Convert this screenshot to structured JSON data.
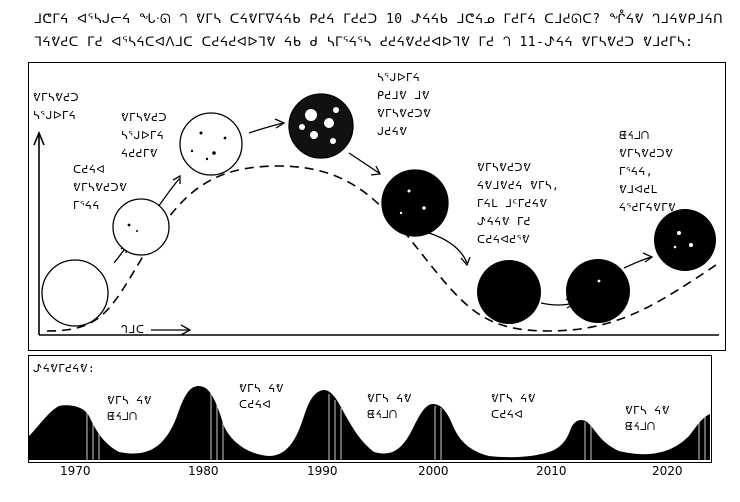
{
  "intro_text": "ᒧᕦᒥᔦ ᐊᕐᓴᒍᓕᔦ ᖓᐧᘏ ᘃ ᕓᒥᓴ ᑕᔦᕓᒥᐁᔦᔦᑲ ᑭᕍᔦ ᒥᕍᕍᑐ 10 ᖌᔦᔦᑲ ᒧᕦᔦᓄ ᒥᕍᒥᔦ ᑕᒧᕍᘏᑕ? ᖎᔦᕓ ᒉᒧᔦᕓᑭᒧᔦᑎ\nᒣᔦᕓᕍᑕ ᒥᕍ ᐊᕐᓴᔦᑕᐊᐱᒧᑕ ᑕᕍᔦᕍᐊᐅᒣᕓ ᔦᑲ ᑯ ᓴᒥᕐᔦᕐᓴ ᕍᕍᔦᕓᕍᕍᐊᐅᒣᕓ ᒥᕍ ᘃ 11-ᖌᔦᔦ ᕓᒥᓴᕓᕍᑐ ᕓᒧᕍᒥᓴ:",
  "main_chart": {
    "y_label": [
      "ᕓᒥᓴᕓᕍᑐ",
      "ᓴᕐᒍᐅᒥᔦ"
    ],
    "x_label": "ᒉᒧᑕ",
    "labels": [
      {
        "key": "early",
        "lines": [
          "ᑕᕍᔦᐊ",
          "ᕓᒥᓴᕓᕍᑐᕓ",
          "ᒥᕐᔦᔦ"
        ]
      },
      {
        "key": "rising",
        "lines": [
          "ᕓᒥᓴᕓᕍᑐ",
          "ᓴᕐᒍᐅᒥᔦ",
          "ᔦᕍᕍᒥᕓ"
        ]
      },
      {
        "key": "peak",
        "lines": [
          "ᓴᕐᒍᐅᒥᔦ",
          "ᑭᕍᒧᕓ ᒧᕓ",
          "ᕓᒥᓴᕓᕍᑐᕓ",
          "ᒍᕍᔦᕓ"
        ]
      },
      {
        "key": "declining",
        "lines": [
          "ᕓᒥᓴᕓᕍᑐᕓ",
          "ᔦᕓᒧᕓᕍᔦ ᕓᒥᓴ,",
          "ᒥᔦᒪ ᒧᑦᒥᕍᔦᕓ",
          "ᖌᔦᔦᕓ ᒥᕍ",
          "ᑕᕍᔦᐊᕍᕐᕓ"
        ]
      },
      {
        "key": "next",
        "lines": [
          "ᘀᔦᒧᑎ",
          "ᕓᒥᓴᕓᕍᑐᕓ",
          "ᒥᕐᔦᔦ,",
          "ᕓᒧᐊᕍᒪ",
          "ᔦᕐᕍᒥᔦᕓᒥᕓ"
        ]
      }
    ]
  },
  "cycle_chart": {
    "title": "ᖌᔦᕓᒥᕍᔦᕓ:",
    "annotations": [
      {
        "key": "a1",
        "lines": [
          "ᕓᒥᓴ ᔦᕓ",
          "ᘀᔦᒧᑎ"
        ]
      },
      {
        "key": "a2",
        "lines": [
          "ᕓᒥᓴ ᔦᕓ",
          "ᑕᕍᔦᐊ"
        ]
      },
      {
        "key": "a3",
        "lines": [
          "ᕓᒥᓴ ᔦᕓ",
          "ᘀᔦᒧᑎ"
        ]
      },
      {
        "key": "a4",
        "lines": [
          "ᕓᒥᓴ ᔦᕓ",
          "ᑕᕍᔦᐊ"
        ]
      },
      {
        "key": "a5",
        "lines": [
          "ᕓᒥᓴ ᔦᕓ",
          "ᘀᔦᒧᑎ"
        ]
      }
    ],
    "years": [
      "1970",
      "1980",
      "1990",
      "2000",
      "2010",
      "2020"
    ]
  }
}
